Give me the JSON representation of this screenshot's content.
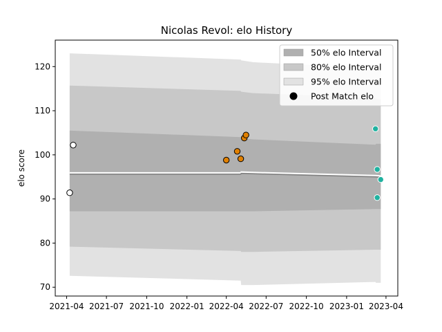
{
  "chart_data": {
    "type": "line",
    "title": "Nicolas Revol: elo History",
    "ylabel": "elo score",
    "xlabel": "",
    "xlim": [
      "2021-03-06",
      "2023-04-28"
    ],
    "ylim": [
      68,
      126
    ],
    "x_ticks": [
      "2021-04",
      "2021-07",
      "2021-10",
      "2022-01",
      "2022-04",
      "2022-07",
      "2022-10",
      "2023-01",
      "2023-04"
    ],
    "y_ticks": [
      70,
      80,
      90,
      100,
      110,
      120
    ],
    "grid": false,
    "legend_position": "top-right",
    "legend": [
      {
        "label": "50% elo Interval",
        "kind": "patch",
        "color": "#b0b0b0"
      },
      {
        "label": "80% elo Interval",
        "kind": "patch",
        "color": "#c8c8c8"
      },
      {
        "label": "95% elo Interval",
        "kind": "patch",
        "color": "#e2e2e2"
      },
      {
        "label": "Post Match elo",
        "kind": "marker",
        "color": "#000000"
      }
    ],
    "bands": [
      {
        "level": "95%",
        "color": "#e2e2e2",
        "x": [
          "2021-04-08",
          "2022-05-04",
          "2022-05-05",
          "2022-06-01",
          "2023-03-08",
          "2023-03-09",
          "2023-03-20"
        ],
        "upper": [
          123.0,
          121.6,
          121.4,
          121.0,
          119.6,
          119.4,
          119.3
        ],
        "lower": [
          72.6,
          71.5,
          70.5,
          70.5,
          71.2,
          71.0,
          71.0
        ]
      },
      {
        "level": "80%",
        "color": "#c8c8c8",
        "x": [
          "2021-04-08",
          "2022-05-04",
          "2022-05-05",
          "2022-06-01",
          "2023-03-08",
          "2023-03-09",
          "2023-03-20"
        ],
        "upper": [
          115.7,
          114.5,
          114.3,
          114.0,
          112.9,
          112.7,
          112.6
        ],
        "lower": [
          79.2,
          78.2,
          78.0,
          78.0,
          78.5,
          78.5,
          78.5
        ]
      },
      {
        "level": "50%",
        "color": "#b0b0b0",
        "x": [
          "2021-04-08",
          "2022-05-04",
          "2022-05-05",
          "2022-06-01",
          "2023-03-08",
          "2023-03-09",
          "2023-03-20"
        ],
        "upper": [
          105.5,
          104.0,
          103.8,
          103.5,
          102.3,
          102.5,
          102.5
        ],
        "lower": [
          87.2,
          87.2,
          87.2,
          87.2,
          87.7,
          87.7,
          87.7
        ]
      }
    ],
    "mean_line": {
      "x": [
        "2021-04-08",
        "2022-05-04",
        "2022-05-05",
        "2022-06-01",
        "2023-03-08",
        "2023-03-20"
      ],
      "y": [
        95.6,
        95.6,
        95.8,
        95.7,
        95.0,
        94.9
      ]
    },
    "points": [
      {
        "x": "2021-04-08",
        "y": 91.4,
        "fill": "#ffffff",
        "edge": "#000000"
      },
      {
        "x": "2021-04-16",
        "y": 102.2,
        "fill": "#ffffff",
        "edge": "#000000"
      },
      {
        "x": "2022-04-01",
        "y": 98.8,
        "fill": "#e08000",
        "edge": "#000000"
      },
      {
        "x": "2022-04-26",
        "y": 100.8,
        "fill": "#e08000",
        "edge": "#000000"
      },
      {
        "x": "2022-05-04",
        "y": 99.1,
        "fill": "#e08000",
        "edge": "#000000"
      },
      {
        "x": "2022-05-12",
        "y": 103.8,
        "fill": "#e08000",
        "edge": "#000000"
      },
      {
        "x": "2022-05-16",
        "y": 104.5,
        "fill": "#e08000",
        "edge": "#000000"
      },
      {
        "x": "2023-03-08",
        "y": 105.9,
        "fill": "#20b2a0",
        "edge": "#ffffff"
      },
      {
        "x": "2023-03-12",
        "y": 96.7,
        "fill": "#20b2a0",
        "edge": "#ffffff"
      },
      {
        "x": "2023-03-12",
        "y": 90.3,
        "fill": "#20b2a0",
        "edge": "#ffffff"
      },
      {
        "x": "2023-03-20",
        "y": 94.4,
        "fill": "#20b2a0",
        "edge": "#ffffff"
      }
    ]
  }
}
